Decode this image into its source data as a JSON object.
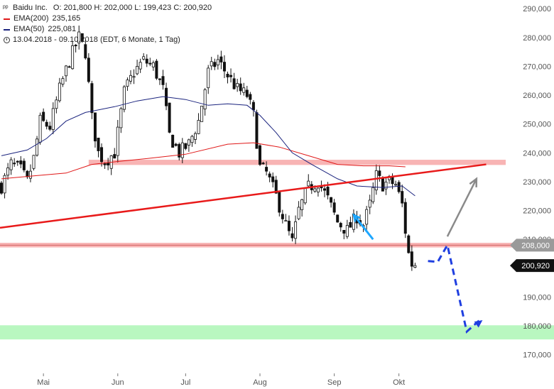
{
  "legend": {
    "instrument": "Baidu Inc.",
    "ohlc": "O: 201,800  H: 202,000  L: 199,423  C: 200,920",
    "ema200_label": "EMA(200)",
    "ema200_value": "235,165",
    "ema50_label": "EMA(50)",
    "ema50_value": "225,081",
    "period": "13.04.2018 - 09.10.2018  (EDT, 6 Monate, 1 Tag)",
    "chart-icon": "bar-chart-icon",
    "clock-icon": "clock-icon"
  },
  "colors": {
    "up": "#ffffff",
    "down": "#111111",
    "ema200": "#e01818",
    "ema50": "#1a237e",
    "resistance_zone": "#f8b4b4",
    "target_zone": "#b9f7c0",
    "trendline": "#e81a1a",
    "arrow_gray": "#8a8a8a",
    "arrow_blue": "#1f3fe0",
    "arrow_light_blue": "#1ea7ff"
  },
  "chart_data": {
    "type": "candlestick",
    "title": "",
    "y_range": [
      165000,
      293000
    ],
    "y_ticks": [
      170000,
      180000,
      190000,
      200000,
      210000,
      220000,
      230000,
      240000,
      250000,
      260000,
      270000,
      280000,
      290000
    ],
    "y_tick_labels": [
      "170,000",
      "180,000",
      "190,000",
      "200,000",
      "210,000",
      "220,000",
      "230,000",
      "240,000",
      "250,000",
      "260,000",
      "270,000",
      "280,000",
      "290,000"
    ],
    "x_labels": [
      {
        "label": "Mai",
        "day": 13
      },
      {
        "label": "Jun",
        "day": 36
      },
      {
        "label": "Jul",
        "day": 57
      },
      {
        "label": "Aug",
        "day": 80
      },
      {
        "label": "Sep",
        "day": 103
      },
      {
        "label": "Okt",
        "day": 123
      }
    ],
    "total_days": 175,
    "close_path": [
      [
        0,
        228500
      ],
      [
        3,
        236000
      ],
      [
        6,
        234000
      ],
      [
        8,
        230000
      ],
      [
        10,
        238000
      ],
      [
        12,
        251000
      ],
      [
        15,
        249000
      ],
      [
        18,
        262000
      ],
      [
        21,
        272000
      ],
      [
        24,
        280000
      ],
      [
        26,
        275000
      ],
      [
        28,
        252000
      ],
      [
        30,
        240000
      ],
      [
        32,
        237000
      ],
      [
        35,
        240000
      ],
      [
        38,
        261000
      ],
      [
        41,
        268000
      ],
      [
        44,
        272000
      ],
      [
        47,
        270000
      ],
      [
        50,
        262000
      ],
      [
        52,
        246000
      ],
      [
        55,
        240000
      ],
      [
        58,
        243000
      ],
      [
        61,
        251000
      ],
      [
        64,
        268000
      ],
      [
        67,
        272000
      ],
      [
        70,
        267000
      ],
      [
        73,
        262000
      ],
      [
        76,
        260000
      ],
      [
        78,
        253000
      ],
      [
        80,
        235000
      ],
      [
        82,
        233000
      ],
      [
        85,
        225000
      ],
      [
        88,
        215000
      ],
      [
        90,
        209000
      ],
      [
        92,
        220000
      ],
      [
        95,
        228000
      ],
      [
        98,
        230000
      ],
      [
        101,
        224000
      ],
      [
        104,
        216000
      ],
      [
        107,
        213000
      ],
      [
        110,
        218000
      ],
      [
        112,
        215000
      ],
      [
        114,
        222000
      ],
      [
        116,
        232000
      ],
      [
        118,
        229000
      ],
      [
        120,
        230000
      ],
      [
        122,
        229000
      ],
      [
        124,
        222000
      ],
      [
        125,
        213000
      ],
      [
        126,
        205000
      ],
      [
        127,
        201500
      ],
      [
        128,
        200920
      ]
    ],
    "ema200": [
      [
        0,
        231000
      ],
      [
        10,
        232000
      ],
      [
        20,
        233000
      ],
      [
        28,
        236000
      ],
      [
        36,
        237000
      ],
      [
        45,
        238000
      ],
      [
        57,
        239500
      ],
      [
        70,
        243000
      ],
      [
        78,
        243500
      ],
      [
        86,
        242000
      ],
      [
        95,
        239000
      ],
      [
        104,
        236000
      ],
      [
        112,
        235500
      ],
      [
        120,
        235500
      ],
      [
        125,
        235165
      ]
    ],
    "ema50": [
      [
        0,
        239000
      ],
      [
        8,
        241000
      ],
      [
        14,
        245000
      ],
      [
        20,
        251000
      ],
      [
        26,
        254000
      ],
      [
        35,
        256000
      ],
      [
        42,
        258000
      ],
      [
        50,
        259500
      ],
      [
        57,
        258500
      ],
      [
        64,
        256500
      ],
      [
        70,
        257000
      ],
      [
        76,
        256500
      ],
      [
        80,
        253000
      ],
      [
        85,
        247000
      ],
      [
        90,
        240000
      ],
      [
        96,
        236000
      ],
      [
        104,
        231000
      ],
      [
        110,
        228500
      ],
      [
        118,
        228000
      ],
      [
        124,
        228500
      ],
      [
        128,
        225081
      ]
    ],
    "current_price": 200920,
    "current_price_label": "200,920",
    "level_208": 208000,
    "level_208_label": "208,000",
    "resistance_zone": [
      235800,
      237600
    ],
    "support_zone": [
      207200,
      208800
    ],
    "target_zone": [
      175300,
      180200
    ],
    "trendline": [
      [
        0,
        215000
      ],
      [
        150,
        236000
      ]
    ],
    "arrow_gray": [
      [
        138,
        211000
      ],
      [
        147,
        231000
      ]
    ],
    "arrow_blue_path": [
      [
        132,
        202500
      ],
      [
        135,
        202200
      ],
      [
        138,
        208000
      ],
      [
        144,
        178000
      ],
      [
        148,
        182000
      ]
    ],
    "arrow_light_blue": [
      [
        115,
        210000
      ],
      [
        109,
        218500
      ]
    ]
  }
}
